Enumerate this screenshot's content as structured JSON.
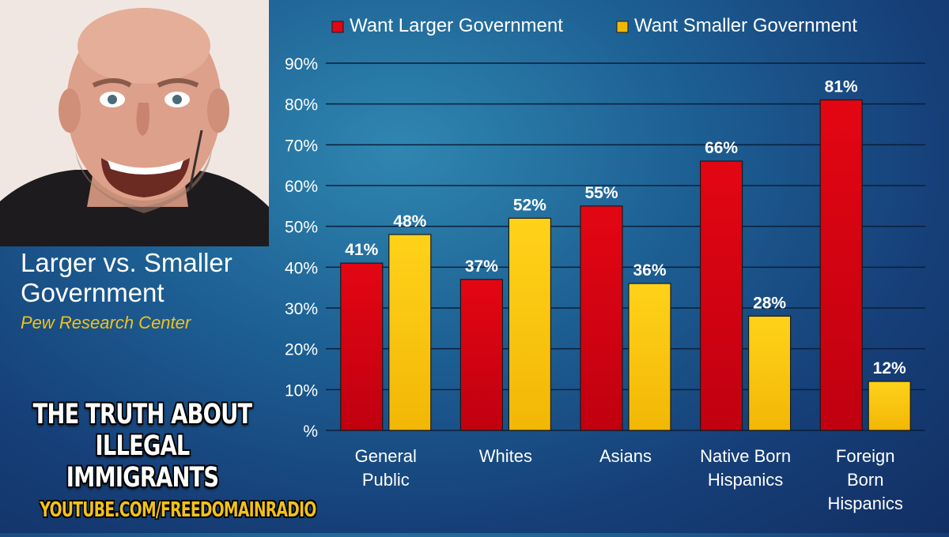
{
  "sidebar": {
    "title": "Larger vs. Smaller Government",
    "source": "Pew Research Center"
  },
  "promo": {
    "line1": "THE TRUTH ABOUT",
    "line2": "ILLEGAL IMMIGRANTS",
    "url": "YOUTUBE.COM/FREEDOMAINRADIO"
  },
  "colors": {
    "larger": "#e30613",
    "smaller": "#f2b705",
    "value_label": "#ffffff",
    "axis_text": "#ffffff"
  },
  "chart_data": {
    "type": "bar",
    "categories": [
      [
        "General",
        "Public"
      ],
      [
        "Whites"
      ],
      [
        "Asians"
      ],
      [
        "Native Born",
        "Hispanics"
      ],
      [
        "Foreign",
        "Born",
        "Hispanics"
      ]
    ],
    "series": [
      {
        "name": "Want Larger Government",
        "values": [
          41,
          37,
          55,
          66,
          81
        ],
        "color": "#e30613"
      },
      {
        "name": "Want Smaller Government",
        "values": [
          48,
          52,
          36,
          28,
          12
        ],
        "color": "#f2b705"
      }
    ],
    "ylim": [
      0,
      90
    ],
    "yticks": [
      0,
      10,
      20,
      30,
      40,
      50,
      60,
      70,
      80,
      90
    ],
    "ytick_labels": [
      "%",
      "10%",
      "20%",
      "30%",
      "40%",
      "50%",
      "60%",
      "70%",
      "80%",
      "90%"
    ],
    "value_labels": [
      [
        "41%",
        "37%",
        "55%",
        "66%",
        "81%"
      ],
      [
        "48%",
        "52%",
        "36%",
        "28%",
        "12%"
      ]
    ],
    "grid": true,
    "legend_position": "top"
  }
}
